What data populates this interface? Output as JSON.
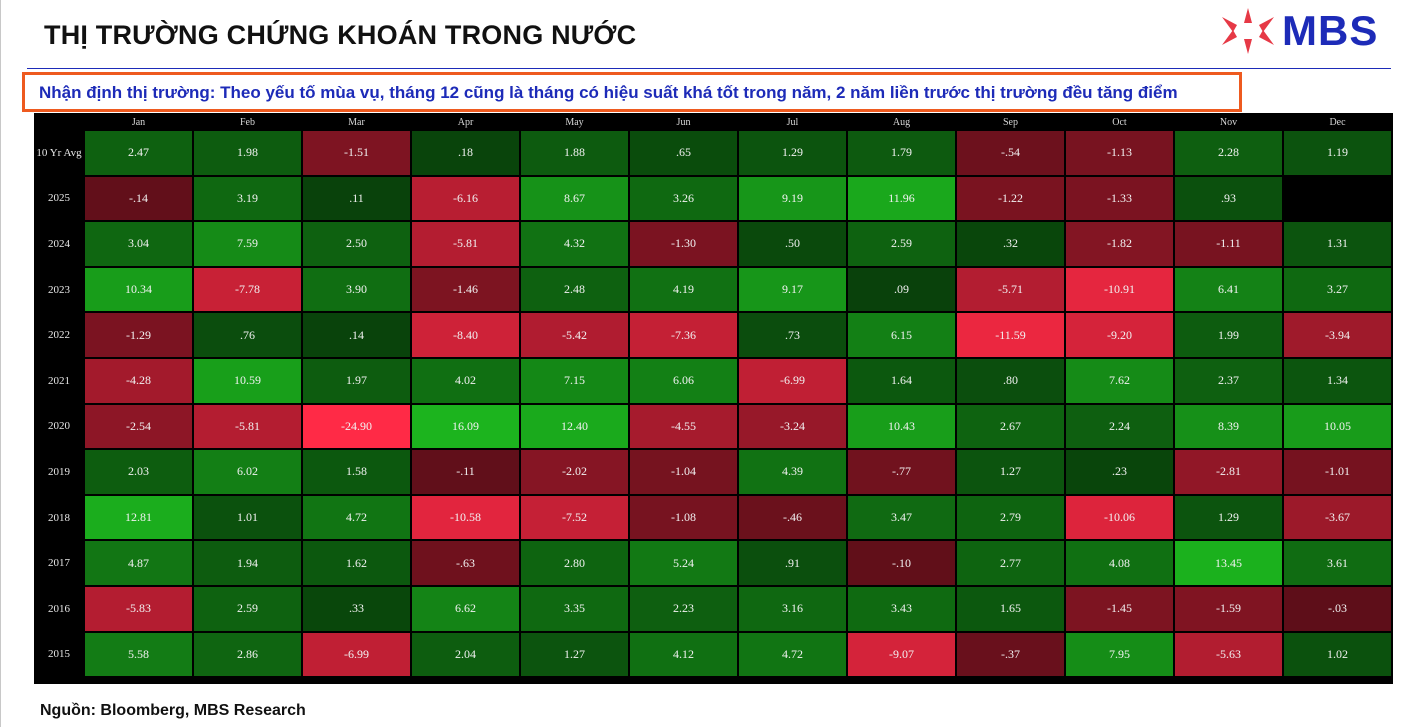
{
  "header": {
    "title": "THỊ TRƯỜNG CHỨNG KHOÁN TRONG NƯỚC",
    "logo_text": "MBS",
    "brand_color": "#1d2bb8",
    "logo_star_color": "#e63946"
  },
  "note": {
    "text": "Nhận định thị trường: Theo yếu tố mùa vụ, tháng 12 cũng là tháng có hiệu suất khá tốt trong năm, 2 năm liền trước thị trường đều tăng điểm",
    "border_color": "#ee5a1f"
  },
  "source": "Nguồn: Bloomberg, MBS Research",
  "chart_data": {
    "type": "heatmap",
    "columns": [
      "Jan",
      "Feb",
      "Mar",
      "Apr",
      "May",
      "Jun",
      "Jul",
      "Aug",
      "Sep",
      "Oct",
      "Nov",
      "Dec"
    ],
    "rows": [
      "10 Yr Avg",
      "2025",
      "2024",
      "2023",
      "2022",
      "2021",
      "2020",
      "2019",
      "2018",
      "2017",
      "2016",
      "2015"
    ],
    "values": [
      [
        "2.47",
        "1.98",
        "-1.51",
        ".18",
        "1.88",
        ".65",
        "1.29",
        "1.79",
        "-.54",
        "-1.13",
        "2.28",
        "1.19"
      ],
      [
        "-.14",
        "3.19",
        ".11",
        "-6.16",
        "8.67",
        "3.26",
        "9.19",
        "11.96",
        "-1.22",
        "-1.33",
        ".93",
        null
      ],
      [
        "3.04",
        "7.59",
        "2.50",
        "-5.81",
        "4.32",
        "-1.30",
        ".50",
        "2.59",
        ".32",
        "-1.82",
        "-1.11",
        "1.31"
      ],
      [
        "10.34",
        "-7.78",
        "3.90",
        "-1.46",
        "2.48",
        "4.19",
        "9.17",
        ".09",
        "-5.71",
        "-10.91",
        "6.41",
        "3.27"
      ],
      [
        "-1.29",
        ".76",
        ".14",
        "-8.40",
        "-5.42",
        "-7.36",
        ".73",
        "6.15",
        "-11.59",
        "-9.20",
        "1.99",
        "-3.94"
      ],
      [
        "-4.28",
        "10.59",
        "1.97",
        "4.02",
        "7.15",
        "6.06",
        "-6.99",
        "1.64",
        ".80",
        "7.62",
        "2.37",
        "1.34"
      ],
      [
        "-2.54",
        "-5.81",
        "-24.90",
        "16.09",
        "12.40",
        "-4.55",
        "-3.24",
        "10.43",
        "2.67",
        "2.24",
        "8.39",
        "10.05"
      ],
      [
        "2.03",
        "6.02",
        "1.58",
        "-.11",
        "-2.02",
        "-1.04",
        "4.39",
        "-.77",
        "1.27",
        ".23",
        "-2.81",
        "-1.01"
      ],
      [
        "12.81",
        "1.01",
        "4.72",
        "-10.58",
        "-7.52",
        "-1.08",
        "-.46",
        "3.47",
        "2.79",
        "-10.06",
        "1.29",
        "-3.67"
      ],
      [
        "4.87",
        "1.94",
        "1.62",
        "-.63",
        "2.80",
        "5.24",
        ".91",
        "-.10",
        "2.77",
        "4.08",
        "13.45",
        "3.61"
      ],
      [
        "-5.83",
        "2.59",
        ".33",
        "6.62",
        "3.35",
        "2.23",
        "3.16",
        "3.43",
        "1.65",
        "-1.45",
        "-1.59",
        "-.03"
      ],
      [
        "5.58",
        "2.86",
        "-6.99",
        "2.04",
        "1.27",
        "4.12",
        "4.72",
        "-9.07",
        "-.37",
        "7.95",
        "-5.63",
        "1.02"
      ]
    ],
    "colors": {
      "positive": "#1fb41f",
      "negative": "#ff2a4a",
      "background": "#000000",
      "empty": "#000000"
    }
  }
}
